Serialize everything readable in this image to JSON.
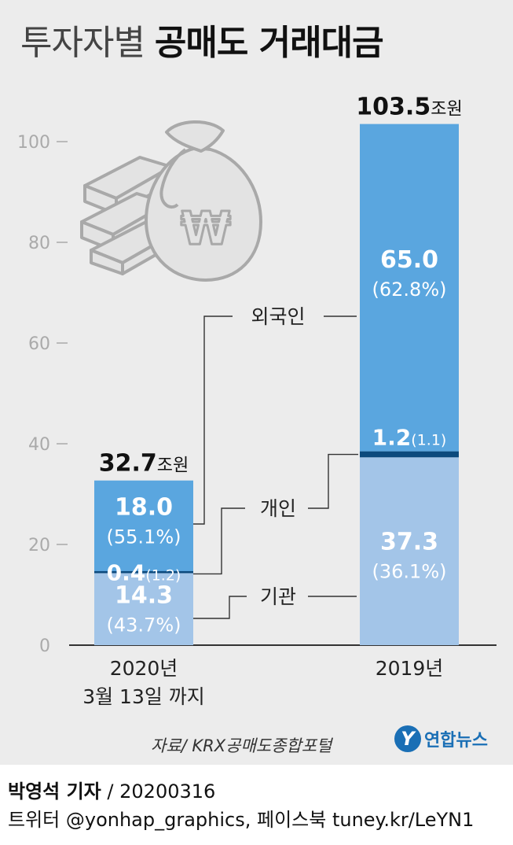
{
  "title": {
    "prefix": "투자자별",
    "main": "공매도 거래대금"
  },
  "chart_data": {
    "type": "bar",
    "stacked": true,
    "ylim": [
      0,
      105
    ],
    "yticks": [
      0,
      20,
      40,
      60,
      80,
      100
    ],
    "grid": false,
    "categories": [
      "2020년\n3월 13일 까지",
      "2019년"
    ],
    "category_lines": [
      [
        "2020년",
        "3월 13일 까지"
      ],
      [
        "2019년"
      ]
    ],
    "series": [
      {
        "name": "기관",
        "values": [
          14.3,
          37.3
        ],
        "shares": [
          "(43.7%)",
          "(36.1%)"
        ],
        "color": "#a3c5e8"
      },
      {
        "name": "개인",
        "values": [
          0.4,
          1.2
        ],
        "shares": [
          "(1.2)",
          "(1.1)"
        ],
        "color": "#0c4a7d"
      },
      {
        "name": "외국인",
        "values": [
          18.0,
          65.0
        ],
        "shares": [
          "(55.1%)",
          "(62.8%)"
        ],
        "color": "#5aa6df"
      }
    ],
    "totals": [
      32.7,
      103.5
    ],
    "total_unit": "조원"
  },
  "source": "자료/ KRX공매도종합포털",
  "logo": {
    "mark": "Y",
    "text": "연합뉴스"
  },
  "credit": {
    "reporter": "박영석 기자",
    "sep": "/",
    "date": "20200316",
    "line2": "트위터 @yonhap_graphics, 페이스북 tuney.kr/LeYN1"
  }
}
